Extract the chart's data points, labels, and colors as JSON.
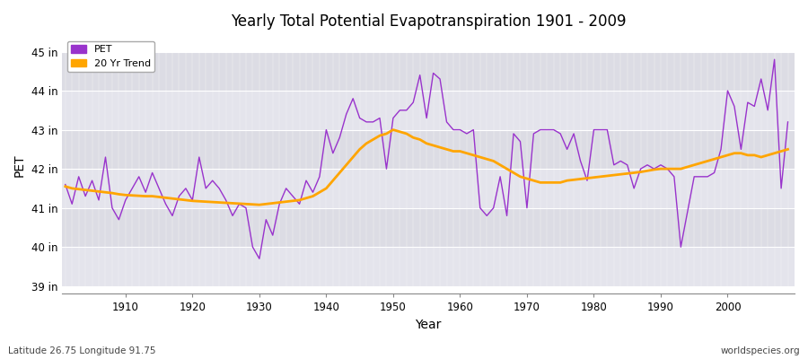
{
  "title": "Yearly Total Potential Evapotranspiration 1901 - 2009",
  "xlabel": "Year",
  "ylabel": "PET",
  "subtitle_left": "Latitude 26.75 Longitude 91.75",
  "subtitle_right": "worldspecies.org",
  "pet_color": "#9933CC",
  "trend_color": "#FFA500",
  "ylim": [
    38.8,
    45.4
  ],
  "xlim": [
    1900.5,
    2010
  ],
  "ytick_labels": [
    "39 in",
    "40 in",
    "41 in",
    "42 in",
    "43 in",
    "44 in",
    "45 in"
  ],
  "ytick_values": [
    39,
    40,
    41,
    42,
    43,
    44,
    45
  ],
  "xtick_values": [
    1910,
    1920,
    1930,
    1940,
    1950,
    1960,
    1970,
    1980,
    1990,
    2000
  ],
  "bg_band_color1": "#E0E0E8",
  "bg_band_color2": "#DCDCE4",
  "years": [
    1901,
    1902,
    1903,
    1904,
    1905,
    1906,
    1907,
    1908,
    1909,
    1910,
    1911,
    1912,
    1913,
    1914,
    1915,
    1916,
    1917,
    1918,
    1919,
    1920,
    1921,
    1922,
    1923,
    1924,
    1925,
    1926,
    1927,
    1928,
    1929,
    1930,
    1931,
    1932,
    1933,
    1934,
    1935,
    1936,
    1937,
    1938,
    1939,
    1940,
    1941,
    1942,
    1943,
    1944,
    1945,
    1946,
    1947,
    1948,
    1949,
    1950,
    1951,
    1952,
    1953,
    1954,
    1955,
    1956,
    1957,
    1958,
    1959,
    1960,
    1961,
    1962,
    1963,
    1964,
    1965,
    1966,
    1967,
    1968,
    1969,
    1970,
    1971,
    1972,
    1973,
    1974,
    1975,
    1976,
    1977,
    1978,
    1979,
    1980,
    1981,
    1982,
    1983,
    1984,
    1985,
    1986,
    1987,
    1988,
    1989,
    1990,
    1991,
    1992,
    1993,
    1994,
    1995,
    1996,
    1997,
    1998,
    1999,
    2000,
    2001,
    2002,
    2003,
    2004,
    2005,
    2006,
    2007,
    2008,
    2009
  ],
  "pet_values": [
    41.6,
    41.1,
    41.8,
    41.3,
    41.7,
    41.2,
    42.3,
    41.0,
    40.7,
    41.2,
    41.5,
    41.8,
    41.4,
    41.9,
    41.5,
    41.1,
    40.8,
    41.3,
    41.5,
    41.2,
    42.3,
    41.5,
    41.7,
    41.5,
    41.2,
    40.8,
    41.1,
    41.0,
    40.0,
    39.7,
    40.7,
    40.3,
    41.1,
    41.5,
    41.3,
    41.1,
    41.7,
    41.4,
    41.8,
    43.0,
    42.4,
    42.8,
    43.4,
    43.8,
    43.3,
    43.2,
    43.2,
    43.3,
    42.0,
    43.3,
    43.5,
    43.5,
    43.7,
    44.4,
    43.3,
    44.45,
    44.3,
    43.2,
    43.0,
    43.0,
    42.9,
    43.0,
    41.0,
    40.8,
    41.0,
    41.8,
    40.8,
    42.9,
    42.7,
    41.0,
    42.9,
    43.0,
    43.0,
    43.0,
    42.9,
    42.5,
    42.9,
    42.2,
    41.7,
    43.0,
    43.0,
    43.0,
    42.1,
    42.2,
    42.1,
    41.5,
    42.0,
    42.1,
    42.0,
    42.1,
    42.0,
    41.8,
    40.0,
    40.9,
    41.8,
    41.8,
    41.8,
    41.9,
    42.5,
    44.0,
    43.6,
    42.5,
    43.7,
    43.6,
    44.3,
    43.5,
    44.8,
    41.5,
    43.2
  ],
  "trend_values": [
    41.55,
    41.5,
    41.48,
    41.46,
    41.44,
    41.42,
    41.4,
    41.38,
    41.35,
    41.33,
    41.32,
    41.31,
    41.3,
    41.3,
    41.28,
    41.26,
    41.24,
    41.22,
    41.2,
    41.18,
    41.17,
    41.16,
    41.15,
    41.14,
    41.13,
    41.12,
    41.11,
    41.1,
    41.09,
    41.08,
    41.1,
    41.12,
    41.14,
    41.16,
    41.18,
    41.2,
    41.25,
    41.3,
    41.4,
    41.5,
    41.7,
    41.9,
    42.1,
    42.3,
    42.5,
    42.65,
    42.75,
    42.85,
    42.9,
    43.0,
    42.95,
    42.9,
    42.8,
    42.75,
    42.65,
    42.6,
    42.55,
    42.5,
    42.45,
    42.45,
    42.4,
    42.35,
    42.3,
    42.25,
    42.2,
    42.1,
    42.0,
    41.9,
    41.8,
    41.75,
    41.7,
    41.65,
    41.65,
    41.65,
    41.65,
    41.7,
    41.72,
    41.74,
    41.76,
    41.78,
    41.8,
    41.82,
    41.84,
    41.86,
    41.88,
    41.9,
    41.92,
    41.95,
    41.98,
    42.0,
    42.0,
    42.0,
    42.0,
    42.05,
    42.1,
    42.15,
    42.2,
    42.25,
    42.3,
    42.35,
    42.4,
    42.4,
    42.35,
    42.35,
    42.3,
    42.35,
    42.4,
    42.45,
    42.5
  ]
}
